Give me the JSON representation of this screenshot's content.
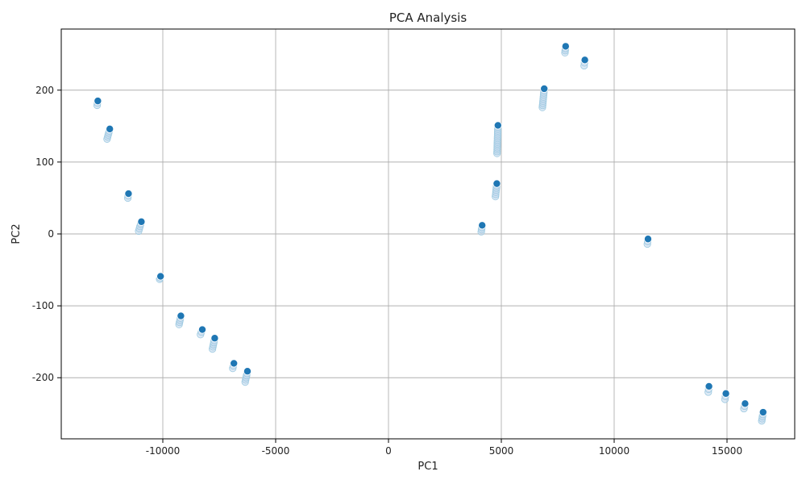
{
  "chart_data": {
    "type": "scatter",
    "title": "PCA Analysis",
    "xlabel": "PC1",
    "ylabel": "PC2",
    "xlim": [
      -14500,
      18000
    ],
    "ylim": [
      -285,
      285
    ],
    "xticks": [
      -10000,
      -5000,
      0,
      5000,
      10000,
      15000
    ],
    "yticks": [
      -200,
      -100,
      0,
      100,
      200
    ],
    "xtick_labels": [
      "-10000",
      "-5000",
      "0",
      "5000",
      "10000",
      "15000"
    ],
    "ytick_labels": [
      "-200",
      "-100",
      "0",
      "100",
      "200"
    ],
    "grid": true,
    "legend": "none",
    "colors": {
      "marker": "#1f77b4",
      "marker_light": "#c6dbef",
      "marker_light_edge": "#9ecae1",
      "grid": "#b0b0b0",
      "axis": "#000000"
    },
    "clusters": [
      {
        "x": -12880,
        "y": 185,
        "spread_x": 30,
        "y_min": 179
      },
      {
        "x": -12350,
        "y": 146,
        "spread_x": 120,
        "y_min": 132
      },
      {
        "x": -11520,
        "y": 56,
        "spread_x": 30,
        "y_min": 50
      },
      {
        "x": -10950,
        "y": 17,
        "spread_x": 120,
        "y_min": 4
      },
      {
        "x": -10100,
        "y": -59,
        "spread_x": 40,
        "y_min": -63
      },
      {
        "x": -9200,
        "y": -114,
        "spread_x": 80,
        "y_min": -126
      },
      {
        "x": -8250,
        "y": -133,
        "spread_x": 80,
        "y_min": -140
      },
      {
        "x": -7700,
        "y": -145,
        "spread_x": 100,
        "y_min": -160
      },
      {
        "x": -6850,
        "y": -180,
        "spread_x": 50,
        "y_min": -187
      },
      {
        "x": -6250,
        "y": -191,
        "spread_x": 100,
        "y_min": -206
      },
      {
        "x": 4150,
        "y": 12,
        "spread_x": 40,
        "y_min": 3
      },
      {
        "x": 4800,
        "y": 70,
        "spread_x": 60,
        "y_min": 52
      },
      {
        "x": 4850,
        "y": 151,
        "spread_x": 40,
        "y_min": 112
      },
      {
        "x": 6900,
        "y": 202,
        "spread_x": 80,
        "y_min": 176
      },
      {
        "x": 7850,
        "y": 261,
        "spread_x": 30,
        "y_min": 252
      },
      {
        "x": 8700,
        "y": 242,
        "spread_x": 30,
        "y_min": 234
      },
      {
        "x": 11500,
        "y": -7,
        "spread_x": 30,
        "y_min": -14
      },
      {
        "x": 14200,
        "y": -212,
        "spread_x": 30,
        "y_min": -220
      },
      {
        "x": 14950,
        "y": -222,
        "spread_x": 40,
        "y_min": -230
      },
      {
        "x": 15800,
        "y": -236,
        "spread_x": 50,
        "y_min": -243
      },
      {
        "x": 16600,
        "y": -248,
        "spread_x": 60,
        "y_min": -260
      }
    ]
  }
}
